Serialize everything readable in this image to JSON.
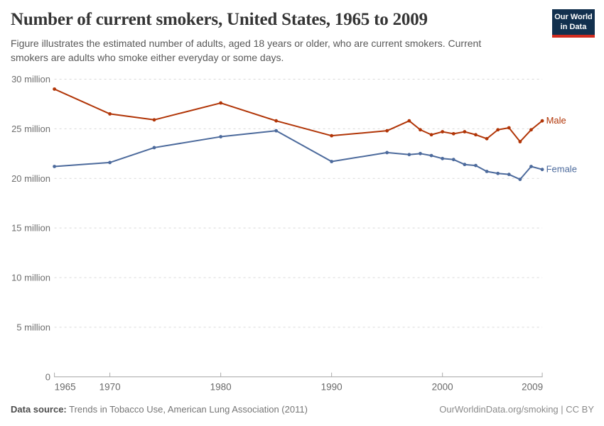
{
  "header": {
    "title": "Number of current smokers, United States, 1965 to 2009",
    "subtitle": "Figure illustrates the estimated number of adults, aged 18 years or older, who are current smokers. Current\nsmokers are adults who smoke either everyday or some days."
  },
  "logo": {
    "line1": "Our World",
    "line2": "in Data",
    "bg_color": "#12304E",
    "stripe_color": "#D12B1F"
  },
  "footer": {
    "source_label": "Data source:",
    "source_text": " Trends in Tobacco Use, American Lung Association (2011)",
    "credit": "OurWorldinData.org/smoking | CC BY"
  },
  "chart_data": {
    "type": "line",
    "title": "Number of current smokers, United States, 1965 to 2009",
    "unit": "million people",
    "xlim": [
      1965,
      2009
    ],
    "ylim": [
      0,
      30
    ],
    "grid": "horizontal-dashed",
    "legend_position": "end-of-line-right",
    "x": [
      1965,
      1970,
      1974,
      1980,
      1985,
      1990,
      1995,
      1997,
      1998,
      1999,
      2000,
      2001,
      2002,
      2003,
      2004,
      2005,
      2006,
      2007,
      2008,
      2009
    ],
    "series": [
      {
        "name": "Male",
        "color": "#B13507",
        "values": [
          29.0,
          26.5,
          25.9,
          27.6,
          25.8,
          24.3,
          24.8,
          25.8,
          24.9,
          24.4,
          24.7,
          24.5,
          24.7,
          24.4,
          24.0,
          24.9,
          25.1,
          23.7,
          24.9,
          25.8
        ]
      },
      {
        "name": "Female",
        "color": "#4C6A9C",
        "values": [
          21.2,
          21.6,
          23.1,
          24.2,
          24.8,
          21.7,
          22.6,
          22.4,
          22.5,
          22.3,
          22.0,
          21.9,
          21.4,
          21.3,
          20.7,
          20.5,
          20.4,
          19.9,
          21.2,
          20.9
        ]
      }
    ],
    "x_ticks": [
      {
        "year": 1965,
        "label": "1965",
        "dx": 15
      },
      {
        "year": 1970,
        "label": "1970",
        "dx": 0
      },
      {
        "year": 1980,
        "label": "1980",
        "dx": 0
      },
      {
        "year": 1990,
        "label": "1990",
        "dx": 0
      },
      {
        "year": 2000,
        "label": "2000",
        "dx": 0
      },
      {
        "year": 2009,
        "label": "2009",
        "dx": -14
      }
    ],
    "y_ticks": [
      {
        "value": 0,
        "label": "0"
      },
      {
        "value": 5,
        "label": "5 million"
      },
      {
        "value": 10,
        "label": "10 million"
      },
      {
        "value": 15,
        "label": "15 million"
      },
      {
        "value": 20,
        "label": "20 million"
      },
      {
        "value": 25,
        "label": "25 million"
      },
      {
        "value": 30,
        "label": "30 million"
      }
    ]
  }
}
